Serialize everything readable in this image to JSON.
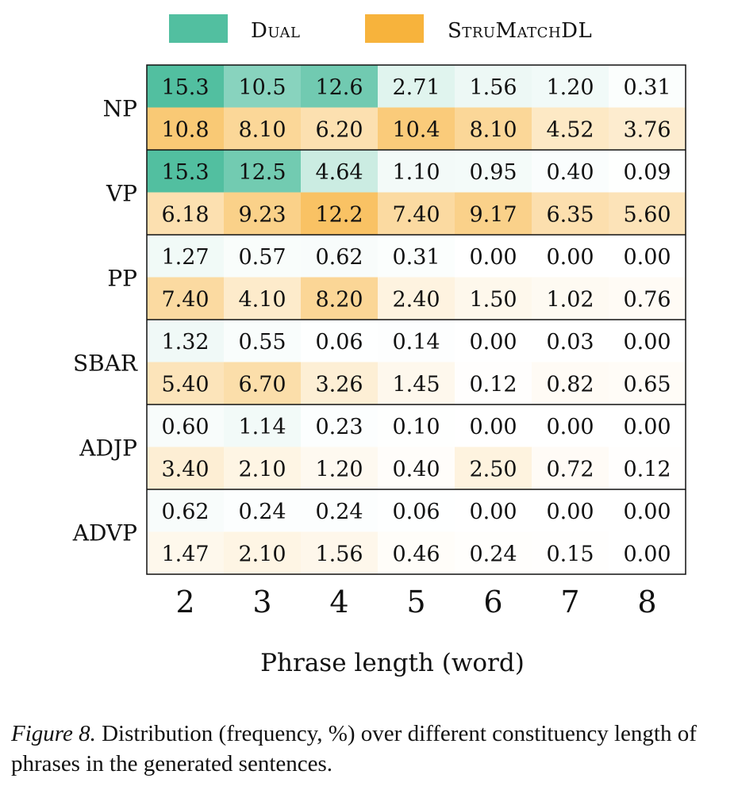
{
  "chart_data": {
    "type": "heatmap",
    "legend": [
      {
        "name": "Dual",
        "color": "#52bfa0"
      },
      {
        "name": "StruMatchDL",
        "color": "#f7b33c"
      }
    ],
    "rows": [
      "NP",
      "VP",
      "PP",
      "SBAR",
      "ADJP",
      "ADVP"
    ],
    "columns": [
      "2",
      "3",
      "4",
      "5",
      "6",
      "7",
      "8"
    ],
    "xlabel": "Phrase length (word)",
    "series": [
      {
        "name": "Dual",
        "values": [
          [
            15.3,
            10.5,
            12.6,
            2.71,
            1.56,
            1.2,
            0.31
          ],
          [
            15.3,
            12.5,
            4.64,
            1.1,
            0.95,
            0.4,
            0.09
          ],
          [
            1.27,
            0.57,
            0.62,
            0.31,
            0.0,
            0.0,
            0.0
          ],
          [
            1.32,
            0.55,
            0.06,
            0.14,
            0.0,
            0.03,
            0.0
          ],
          [
            0.6,
            1.14,
            0.23,
            0.1,
            0.0,
            0.0,
            0.0
          ],
          [
            0.62,
            0.24,
            0.24,
            0.06,
            0.0,
            0.0,
            0.0
          ]
        ],
        "labels": [
          [
            "15.3",
            "10.5",
            "12.6",
            "2.71",
            "1.56",
            "1.20",
            "0.31"
          ],
          [
            "15.3",
            "12.5",
            "4.64",
            "1.10",
            "0.95",
            "0.40",
            "0.09"
          ],
          [
            "1.27",
            "0.57",
            "0.62",
            "0.31",
            "0.00",
            "0.00",
            "0.00"
          ],
          [
            "1.32",
            "0.55",
            "0.06",
            "0.14",
            "0.00",
            "0.03",
            "0.00"
          ],
          [
            "0.60",
            "1.14",
            "0.23",
            "0.10",
            "0.00",
            "0.00",
            "0.00"
          ],
          [
            "0.62",
            "0.24",
            "0.24",
            "0.06",
            "0.00",
            "0.00",
            "0.00"
          ]
        ]
      },
      {
        "name": "StruMatchDL",
        "values": [
          [
            10.8,
            8.1,
            6.2,
            10.4,
            8.1,
            4.52,
            3.76
          ],
          [
            6.18,
            9.23,
            12.2,
            7.4,
            9.17,
            6.35,
            5.6
          ],
          [
            7.4,
            4.1,
            8.2,
            2.4,
            1.5,
            1.02,
            0.76
          ],
          [
            5.4,
            6.7,
            3.26,
            1.45,
            0.12,
            0.82,
            0.65
          ],
          [
            3.4,
            2.1,
            1.2,
            0.4,
            2.5,
            0.72,
            0.12
          ],
          [
            1.47,
            2.1,
            1.56,
            0.46,
            0.24,
            0.15,
            0.0
          ]
        ],
        "labels": [
          [
            "10.8",
            "8.10",
            "6.20",
            "10.4",
            "8.10",
            "4.52",
            "3.76"
          ],
          [
            "6.18",
            "9.23",
            "12.2",
            "7.40",
            "9.17",
            "6.35",
            "5.60"
          ],
          [
            "7.40",
            "4.10",
            "8.20",
            "2.40",
            "1.50",
            "1.02",
            "0.76"
          ],
          [
            "5.40",
            "6.70",
            "3.26",
            "1.45",
            "0.12",
            "0.82",
            "0.65"
          ],
          [
            "3.40",
            "2.10",
            "1.20",
            "0.40",
            "2.50",
            "0.72",
            "0.12"
          ],
          [
            "1.47",
            "2.10",
            "1.56",
            "0.46",
            "0.24",
            "0.15",
            "0.00"
          ]
        ]
      }
    ]
  },
  "caption": {
    "label": "Figure 8.",
    "text": "Distribution (frequency, %) over different constituency length of phrases in the generated sentences."
  }
}
